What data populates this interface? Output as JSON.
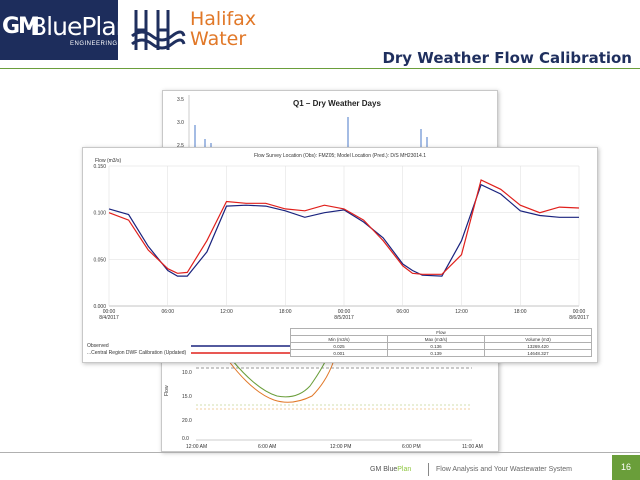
{
  "header": {
    "logo_gm": {
      "gm": "GM",
      "blue": "BluePlan",
      "engineering": "ENGINEERING"
    },
    "logo_hw": {
      "line1": "Halifax",
      "line2": "Water"
    },
    "title": "Dry Weather Flow Calibration"
  },
  "colors": {
    "navy": "#1f2f5e",
    "green": "#6a9e3a",
    "orange": "#e17828",
    "observed": "#1a237e",
    "model": "#e0201c"
  },
  "q1_chart": {
    "title": "Q1 – Dry Weather Days",
    "y_ticks": [
      "3.5",
      "3.0",
      "2.5"
    ]
  },
  "main_chart": {
    "title": "Flow Survey Location (Obs): FMZ05; Model Location (Pred.): D/S MH23014.1",
    "y_label": "Flow (m3/s)",
    "y_ticks": [
      "0.000",
      "0.050",
      "0.100",
      "0.150"
    ],
    "x_ticks": [
      {
        "time": "00:00",
        "date": "8/4/2017"
      },
      {
        "time": "06:00",
        "date": ""
      },
      {
        "time": "12:00",
        "date": ""
      },
      {
        "time": "18:00",
        "date": ""
      },
      {
        "time": "00:00",
        "date": "8/5/2017"
      },
      {
        "time": "06:00",
        "date": ""
      },
      {
        "time": "12:00",
        "date": ""
      },
      {
        "time": "18:00",
        "date": ""
      },
      {
        "time": "00:00",
        "date": "8/6/2017"
      }
    ]
  },
  "chart_data": {
    "type": "line",
    "x_hours": [
      0,
      2,
      4,
      6,
      7,
      8,
      10,
      12,
      14,
      16,
      18,
      20,
      22,
      24,
      26,
      28,
      30,
      31,
      32,
      34,
      36,
      38,
      40,
      42,
      44,
      46,
      48
    ],
    "series": [
      {
        "name": "Observed",
        "values": [
          0.104,
          0.098,
          0.064,
          0.038,
          0.032,
          0.032,
          0.058,
          0.107,
          0.108,
          0.107,
          0.102,
          0.095,
          0.1,
          0.103,
          0.09,
          0.073,
          0.045,
          0.038,
          0.033,
          0.032,
          0.07,
          0.13,
          0.12,
          0.102,
          0.097,
          0.095,
          0.095
        ]
      },
      {
        "name": "...Central Region DWF Calibration (Updated)",
        "values": [
          0.1,
          0.092,
          0.06,
          0.04,
          0.035,
          0.036,
          0.07,
          0.112,
          0.11,
          0.11,
          0.104,
          0.102,
          0.108,
          0.104,
          0.092,
          0.07,
          0.043,
          0.035,
          0.034,
          0.034,
          0.055,
          0.135,
          0.125,
          0.108,
          0.1,
          0.106,
          0.105
        ]
      }
    ],
    "ylim": [
      0,
      0.15
    ]
  },
  "stats": {
    "group": "Flow",
    "headers": [
      "Min (m3/s)",
      "Max (m3/s)",
      "Volume (m3)"
    ],
    "rows": [
      {
        "name": "Observed",
        "min": "0.025",
        "max": "0.136",
        "volume": "13269.420"
      },
      {
        "name": "...Central Region DWF Calibration (Updated)",
        "min": "0.001",
        "max": "0.139",
        "volume": "14648.327"
      }
    ]
  },
  "bottom_chart": {
    "y_label": "Flow",
    "y_ticks": [
      "10.0",
      "15.0",
      "20.0",
      "0.0"
    ],
    "x_ticks": [
      "12:00 AM",
      "6:00 AM",
      "12:00 PM",
      "6:00 PM",
      "11:00 AM"
    ]
  },
  "footer": {
    "brand_gm": "GM Blue",
    "brand_plan": "Plan",
    "tagline": "Flow Analysis and Your Wastewater System",
    "page": "16"
  }
}
